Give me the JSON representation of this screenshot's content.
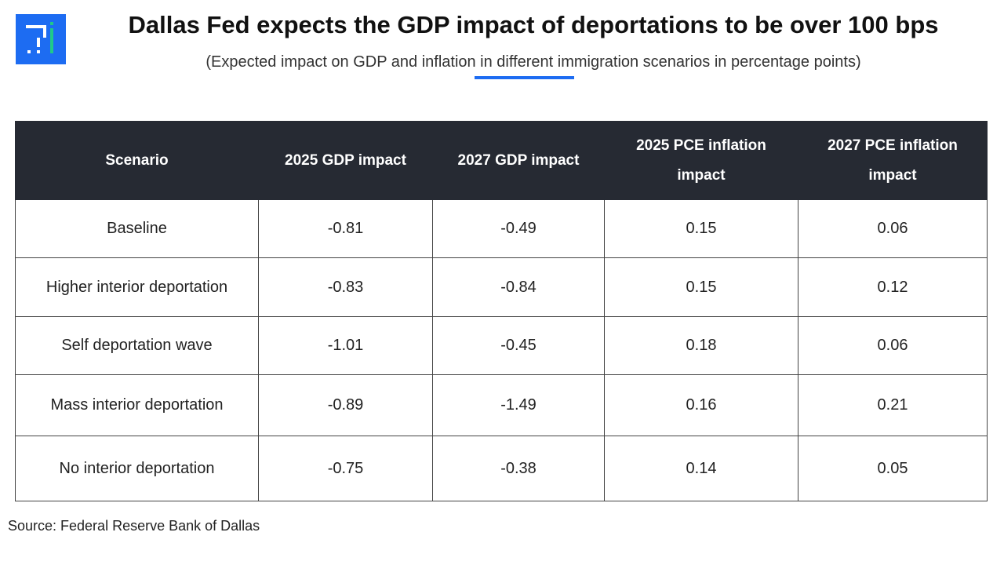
{
  "header": {
    "title": "Dallas Fed expects the GDP impact of deportations to be over 100 bps",
    "subtitle": "(Expected impact on GDP and inflation in different immigration scenarios in percentage points)"
  },
  "colors": {
    "accent": "#1d6cf2",
    "header_bg": "#262a33",
    "logo_mark": "#20c98a"
  },
  "logo": {
    "icon": "t-logo-icon"
  },
  "chart_data": {
    "type": "table",
    "columns": [
      "Scenario",
      "2025 GDP impact",
      "2027 GDP impact",
      "2025 PCE inflation impact",
      "2027 PCE inflation impact"
    ],
    "rows": [
      [
        "Baseline",
        "-0.81",
        "-0.49",
        "0.15",
        "0.06"
      ],
      [
        "Higher interior deportation",
        "-0.83",
        "-0.84",
        "0.15",
        "0.12"
      ],
      [
        "Self deportation wave",
        "-1.01",
        "-0.45",
        "0.18",
        "0.06"
      ],
      [
        "Mass interior deportation",
        "-0.89",
        "-1.49",
        "0.16",
        "0.21"
      ],
      [
        "No interior deportation",
        "-0.75",
        "-0.38",
        "0.14",
        "0.05"
      ]
    ]
  },
  "footer": {
    "source": "Source: Federal Reserve Bank of Dallas"
  }
}
